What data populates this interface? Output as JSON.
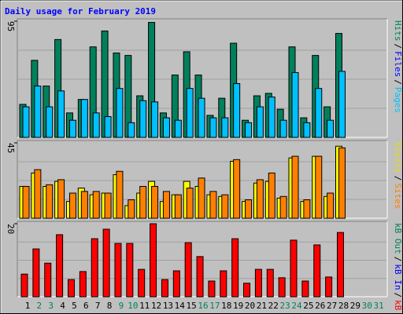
{
  "chart_data": {
    "type": "bar",
    "title": "Daily usage for February 2019",
    "title_color": "#0000ff",
    "categories": [
      "1",
      "2",
      "3",
      "4",
      "5",
      "6",
      "7",
      "8",
      "9",
      "10",
      "11",
      "12",
      "13",
      "14",
      "15",
      "16",
      "17",
      "18",
      "19",
      "20",
      "21",
      "22",
      "23",
      "24",
      "25",
      "26",
      "27",
      "28",
      "29",
      "30",
      "31"
    ],
    "category_colors": [
      "#000000",
      "#00805c",
      "#00805c",
      "#000000",
      "#000000",
      "#000000",
      "#000000",
      "#000000",
      "#00805c",
      "#00805c",
      "#000000",
      "#000000",
      "#000000",
      "#000000",
      "#000000",
      "#00805c",
      "#00805c",
      "#000000",
      "#000000",
      "#000000",
      "#000000",
      "#000000",
      "#00805c",
      "#00805c",
      "#000000",
      "#000000",
      "#000000",
      "#000000",
      "#000000",
      "#00805c",
      "#00805c"
    ],
    "legend_separator": "/",
    "panels": [
      {
        "ylim": [
          0,
          95
        ],
        "yticks": [
          95
        ],
        "legend": [
          {
            "text": "Hits",
            "color": "#00805c"
          },
          {
            "text": "Files",
            "color": "#0000ff"
          },
          {
            "text": "Pages",
            "color": "#00c0ff"
          }
        ],
        "series": [
          {
            "color": "#00805c",
            "values": [
              27,
              63,
              42,
              80,
              20,
              31,
              74,
              87,
              69,
              67,
              34,
              94,
              20,
              51,
              70,
              51,
              18,
              32,
              77,
              14,
              34,
              36,
              23,
              74,
              16,
              67,
              25,
              85,
              null,
              null,
              null
            ]
          },
          {
            "color": "#00c0ff",
            "values": [
              25,
              42,
              25,
              38,
              14,
              31,
              20,
              17,
              40,
              12,
              30,
              29,
              16,
              14,
              40,
              32,
              16,
              16,
              44,
              12,
              25,
              33,
              14,
              53,
              12,
              40,
              14,
              54,
              null,
              null,
              null
            ]
          }
        ]
      },
      {
        "ylim": [
          0,
          45
        ],
        "yticks": [
          45
        ],
        "legend": [
          {
            "text": "Visits",
            "color": "#e0e000"
          },
          {
            "text": "Sites",
            "color": "#ff8000"
          }
        ],
        "series": [
          {
            "color": "#ffff00",
            "values": [
              19,
              27,
              19,
              22,
              10,
              18,
              14,
              15,
              26,
              7.5,
              15,
              22,
              10,
              14,
              22,
              19,
              14,
              13,
              34,
              10,
              21,
              22,
              12,
              36,
              10,
              37,
              13,
              43,
              null,
              null,
              null
            ]
          },
          {
            "color": "#ff8000",
            "values": [
              19,
              29,
              20,
              23,
              15,
              16,
              16,
              15,
              28,
              11,
              19,
              19,
              16,
              14,
              18,
              24,
              16,
              14,
              35,
              11,
              23,
              27,
              13,
              37,
              11,
              37,
              15,
              42,
              null,
              null,
              null
            ]
          }
        ]
      },
      {
        "ylim": [
          0,
          20
        ],
        "yticks": [
          20
        ],
        "legend": [
          {
            "text": "kB Out",
            "color": "#00805c"
          },
          {
            "text": "kB In",
            "color": "#0000ff"
          },
          {
            "text": "kB F",
            "color": "#ff0000"
          }
        ],
        "series": [
          {
            "color": "#ff0000",
            "values": [
              6.2,
              13.1,
              9.2,
              17,
              4.7,
              6.9,
              15.9,
              18.5,
              14.6,
              14.6,
              7.5,
              20,
              4.7,
              7.1,
              14.8,
              11,
              4.3,
              7.1,
              15.9,
              3.7,
              7.5,
              7.5,
              5.2,
              15.5,
              4.3,
              14.2,
              5.4,
              17.6,
              null,
              null,
              null
            ]
          }
        ]
      }
    ]
  }
}
